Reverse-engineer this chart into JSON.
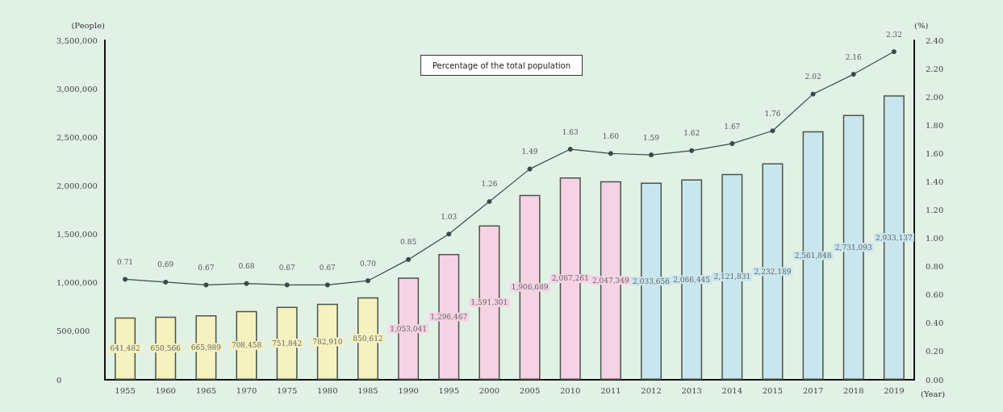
{
  "chart_data": {
    "type": "bar",
    "xlabel": "(Year)",
    "ylabel": "(People)",
    "y2label": "(%)",
    "annotations": [
      "Percentage of the total population"
    ],
    "categories": [
      "1955",
      "1960",
      "1965",
      "1970",
      "1975",
      "1980",
      "1985",
      "1990",
      "1995",
      "2000",
      "2005",
      "2010",
      "2011",
      "2012",
      "2013",
      "2014",
      "2015",
      "2017",
      "2018",
      "2019"
    ],
    "series": [
      {
        "values": [
          641482,
          650566,
          665989,
          708458,
          751842,
          782910,
          850612,
          1053041,
          1296467,
          1591301,
          1906689,
          2087261,
          2047349,
          2033656,
          2066445,
          2121831,
          2232189,
          2561848,
          2731093,
          2933137
        ],
        "colors": [
          "#f6f2bf",
          "#f6f2bf",
          "#f6f2bf",
          "#f6f2bf",
          "#f6f2bf",
          "#f6f2bf",
          "#f6f2bf",
          "#f5d3e4",
          "#f5d3e4",
          "#f5d3e4",
          "#f5d3e4",
          "#f5d3e4",
          "#f5d3e4",
          "#c9e6ee",
          "#c9e6ee",
          "#c9e6ee",
          "#c9e6ee",
          "#c9e6ee",
          "#c9e6ee",
          "#c9e6ee"
        ],
        "value_labels": [
          "641,482",
          "650,566",
          "665,989",
          "708,458",
          "751,842",
          "782,910",
          "850,612",
          "1,053,041",
          "1,296,467",
          "1,591,301",
          "1,906,689",
          "2,087,261",
          "2,047,349",
          "2,033,656",
          "2,066,445",
          "2,121,831",
          "2,232,189",
          "2,561,848",
          "2,731,093",
          "2,933,137"
        ]
      },
      {
        "type": "line",
        "axis": "y2",
        "color": "#3a4a4a",
        "marker": "circle",
        "values": [
          0.71,
          0.69,
          0.67,
          0.68,
          0.67,
          0.67,
          0.7,
          0.85,
          1.03,
          1.26,
          1.49,
          1.63,
          1.6,
          1.59,
          1.62,
          1.67,
          1.76,
          2.02,
          2.16,
          2.32
        ],
        "value_labels": [
          "0.71",
          "0.69",
          "0.67",
          "0.68",
          "0.67",
          "0.67",
          "0.70",
          "0.85",
          "1.03",
          "1.26",
          "1.49",
          "1.63",
          "1.60",
          "1.59",
          "1.62",
          "1.67",
          "1.76",
          "2.02",
          "2.16",
          "2.32"
        ]
      }
    ],
    "ylim": [
      0,
      3500000
    ],
    "yticks": [
      0,
      {
        "value": 500000,
        "label": "500,000"
      },
      {
        "value": 1000000,
        "label": "1,000,000"
      },
      {
        "value": 1500000,
        "label": "1,500,000"
      },
      {
        "value": 2000000,
        "label": "2,000,000"
      },
      {
        "value": 2500000,
        "label": "2,500,000"
      },
      {
        "value": 3000000,
        "label": "3,000,000"
      },
      {
        "value": 3500000,
        "label": "3,500,000"
      }
    ],
    "y2lim": [
      0,
      2.4
    ],
    "y2ticks": [
      {
        "value": 0,
        "label": "0.00"
      },
      {
        "value": 0.2,
        "label": "0.20"
      },
      {
        "value": 0.4,
        "label": "0.40"
      },
      {
        "value": 0.6,
        "label": "0.60"
      },
      {
        "value": 0.8,
        "label": "0.80"
      },
      {
        "value": 1,
        "label": "1.00"
      },
      {
        "value": 1.2,
        "label": "1.20"
      },
      {
        "value": 1.4,
        "label": "1.40"
      },
      {
        "value": 1.6,
        "label": "1.60"
      },
      {
        "value": 1.8,
        "label": "1.80"
      },
      {
        "value": 2,
        "label": "2.00"
      },
      {
        "value": 2.2,
        "label": "2.20"
      },
      {
        "value": 2.4,
        "label": "2.40"
      }
    ],
    "grid": false
  }
}
